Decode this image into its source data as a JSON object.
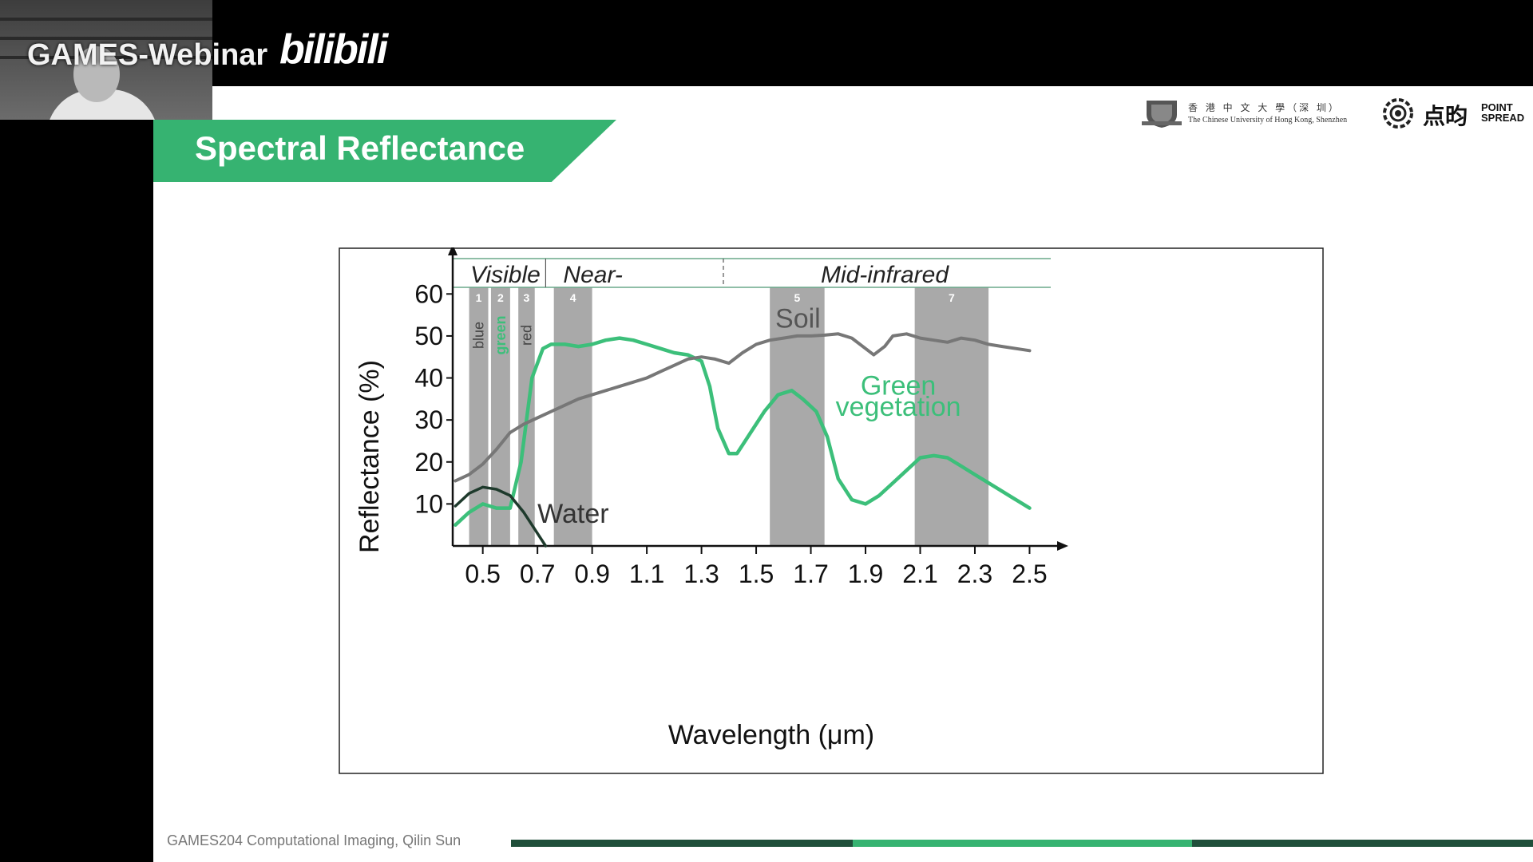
{
  "stream": {
    "overlay_title": "GAMES-Webinar",
    "platform_logo": "bilibili"
  },
  "slide": {
    "title": "Spectral Reflectance",
    "affiliation": {
      "cuhk_name_cn": "香 港 中 文 大 學（深 圳）",
      "cuhk_name_en": "The Chinese University of Hong Kong, Shenzhen",
      "pointspread_cn": "点昀",
      "pointspread_en_line1": "POINT",
      "pointspread_en_line2": "SPREAD"
    },
    "footer": "GAMES204 Computational Imaging, Qilin Sun"
  },
  "colors": {
    "accent_green": "#36b371",
    "vegetation": "#3cbf7a",
    "soil": "#777777",
    "water": "#1e3a2c",
    "band_gray": "#a9a9a9",
    "footer_dark": "#1f4f3a",
    "footer_light": "#36b371"
  },
  "chart_data": {
    "type": "line",
    "xlabel": "Wavelength (μm)",
    "ylabel": "Reflectance (%)",
    "xlim": [
      0.39,
      2.56
    ],
    "ylim": [
      0,
      65
    ],
    "xticks": [
      "0.5",
      "0.7",
      "0.9",
      "1.1",
      "1.3",
      "1.5",
      "1.7",
      "1.9",
      "2.1",
      "2.3",
      "2.5"
    ],
    "yticks": [
      "10",
      "20",
      "30",
      "40",
      "50",
      "60"
    ],
    "regions": [
      {
        "label": "Visible",
        "x_start": 0.39,
        "x_end": 0.73
      },
      {
        "label": "Near-",
        "x_start": 0.73,
        "x_end": 1.38
      },
      {
        "label": "Mid-infrared",
        "x_start": 1.38,
        "x_end": 2.56
      }
    ],
    "bands": [
      {
        "number": "1",
        "label": "blue",
        "x_start": 0.45,
        "x_end": 0.52
      },
      {
        "number": "2",
        "label": "green",
        "x_start": 0.53,
        "x_end": 0.6
      },
      {
        "number": "3",
        "label": "red",
        "x_start": 0.63,
        "x_end": 0.69
      },
      {
        "number": "4",
        "label": "",
        "x_start": 0.76,
        "x_end": 0.9
      },
      {
        "number": "5",
        "label": "",
        "x_start": 1.55,
        "x_end": 1.75
      },
      {
        "number": "7",
        "label": "",
        "x_start": 2.08,
        "x_end": 2.35
      }
    ],
    "series": [
      {
        "name": "Green vegetation",
        "x": [
          0.4,
          0.45,
          0.5,
          0.55,
          0.6,
          0.64,
          0.68,
          0.72,
          0.75,
          0.8,
          0.85,
          0.9,
          0.95,
          1.0,
          1.05,
          1.1,
          1.15,
          1.2,
          1.25,
          1.3,
          1.33,
          1.36,
          1.4,
          1.43,
          1.48,
          1.53,
          1.58,
          1.63,
          1.67,
          1.72,
          1.76,
          1.8,
          1.85,
          1.9,
          1.95,
          2.0,
          2.05,
          2.1,
          2.15,
          2.2,
          2.25,
          2.3,
          2.35,
          2.4,
          2.45,
          2.5
        ],
        "y": [
          5,
          8,
          10,
          9,
          9,
          20,
          40,
          47,
          48,
          48,
          47.5,
          48,
          49,
          49.5,
          49,
          48,
          47,
          46,
          45.5,
          44,
          38,
          28,
          22,
          22,
          27,
          32,
          36,
          37,
          35,
          32,
          26,
          16,
          11,
          10,
          12,
          15,
          18,
          21,
          21.5,
          21,
          19,
          17,
          15,
          13,
          11,
          9
        ]
      },
      {
        "name": "Soil",
        "x": [
          0.4,
          0.45,
          0.5,
          0.55,
          0.6,
          0.65,
          0.7,
          0.75,
          0.8,
          0.85,
          0.9,
          0.95,
          1.0,
          1.05,
          1.1,
          1.15,
          1.2,
          1.25,
          1.3,
          1.35,
          1.4,
          1.45,
          1.5,
          1.55,
          1.6,
          1.65,
          1.7,
          1.75,
          1.8,
          1.85,
          1.9,
          1.93,
          1.97,
          2.0,
          2.05,
          2.1,
          2.15,
          2.2,
          2.25,
          2.3,
          2.35,
          2.4,
          2.45,
          2.5
        ],
        "y": [
          15.5,
          17,
          19.5,
          23,
          27,
          29,
          30.5,
          32,
          33.5,
          35,
          36,
          37,
          38,
          39,
          40,
          41.5,
          43,
          44.5,
          45,
          44.5,
          43.5,
          46,
          48,
          49,
          49.5,
          50,
          50,
          50.2,
          50.5,
          49.5,
          47,
          45.5,
          47.5,
          50,
          50.5,
          49.5,
          49,
          48.5,
          49.5,
          49,
          48,
          47.5,
          47,
          46.5
        ]
      },
      {
        "name": "Water",
        "x": [
          0.4,
          0.45,
          0.5,
          0.55,
          0.6,
          0.65,
          0.7,
          0.73
        ],
        "y": [
          9.5,
          12.5,
          14,
          13.5,
          12,
          8,
          3,
          0
        ]
      }
    ],
    "annotations": [
      {
        "text": "Soil",
        "x": 1.57,
        "y": 52
      },
      {
        "text": "Green",
        "x": 2.02,
        "y": 36
      },
      {
        "text": "vegetation",
        "x": 2.02,
        "y": 31
      },
      {
        "text": "Water",
        "x": 0.7,
        "y": 5.5
      }
    ]
  }
}
